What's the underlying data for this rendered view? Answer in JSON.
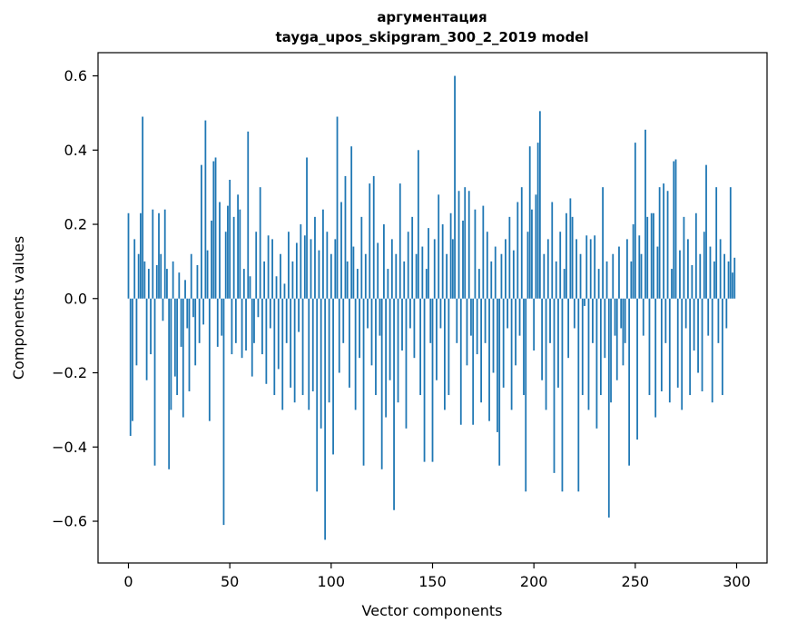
{
  "chart": {
    "title_line1": "аргументация",
    "title_line2": "tayga_upos_skipgram_300_2_2019 model",
    "xlabel": "Vector components",
    "ylabel": "Components values"
  },
  "chart_data": {
    "type": "bar",
    "title": "аргументация\ntayga_upos_skipgram_300_2_2019 model",
    "xlabel": "Vector components",
    "ylabel": "Components values",
    "bar_color": "#1f77b4",
    "grid": false,
    "legend": false,
    "xlim": [
      -15,
      315
    ],
    "ylim": [
      -0.7125,
      0.6625
    ],
    "x_ticks": [
      0,
      50,
      100,
      150,
      200,
      250,
      300
    ],
    "x_tick_labels": [
      "0",
      "50",
      "100",
      "150",
      "200",
      "250",
      "300"
    ],
    "y_ticks": [
      -0.6,
      -0.4,
      -0.2,
      0.0,
      0.2,
      0.4,
      0.6
    ],
    "y_tick_labels": [
      "−0.6",
      "−0.4",
      "−0.2",
      "0.0",
      "0.2",
      "0.4",
      "0.6"
    ],
    "values": [
      0.23,
      -0.37,
      -0.33,
      0.16,
      -0.18,
      0.12,
      0.23,
      0.49,
      0.1,
      -0.22,
      0.08,
      -0.15,
      0.24,
      -0.45,
      0.09,
      0.23,
      0.12,
      -0.06,
      0.24,
      0.08,
      -0.46,
      -0.3,
      0.1,
      -0.21,
      -0.26,
      0.07,
      -0.13,
      -0.32,
      0.05,
      -0.08,
      -0.25,
      0.12,
      -0.05,
      -0.18,
      0.09,
      -0.12,
      0.36,
      -0.07,
      0.48,
      0.13,
      -0.33,
      0.21,
      0.37,
      0.38,
      -0.13,
      0.26,
      -0.1,
      -0.61,
      0.18,
      0.25,
      0.32,
      -0.15,
      0.22,
      -0.12,
      0.28,
      0.24,
      -0.16,
      0.08,
      -0.14,
      0.45,
      0.06,
      -0.21,
      -0.12,
      0.18,
      -0.05,
      0.3,
      -0.15,
      0.1,
      -0.23,
      0.17,
      -0.08,
      0.16,
      -0.26,
      0.06,
      -0.19,
      0.12,
      -0.3,
      0.04,
      -0.12,
      0.18,
      -0.24,
      0.1,
      -0.28,
      0.15,
      -0.09,
      0.2,
      -0.26,
      0.17,
      0.38,
      -0.3,
      0.16,
      -0.25,
      0.22,
      -0.52,
      0.13,
      -0.35,
      0.24,
      -0.65,
      0.18,
      -0.28,
      0.12,
      -0.42,
      0.16,
      0.49,
      -0.2,
      0.26,
      -0.12,
      0.33,
      0.1,
      -0.24,
      0.41,
      0.14,
      -0.3,
      0.08,
      -0.16,
      0.22,
      -0.45,
      0.12,
      -0.08,
      0.31,
      -0.18,
      0.33,
      -0.26,
      0.15,
      -0.1,
      -0.46,
      0.2,
      -0.32,
      0.08,
      -0.22,
      0.16,
      -0.57,
      0.12,
      -0.28,
      0.31,
      -0.14,
      0.1,
      -0.35,
      0.18,
      -0.08,
      0.22,
      -0.16,
      0.12,
      0.4,
      -0.26,
      0.14,
      -0.44,
      0.08,
      0.19,
      -0.12,
      -0.44,
      0.16,
      -0.22,
      0.28,
      -0.08,
      0.2,
      -0.3,
      0.12,
      -0.26,
      0.23,
      0.16,
      0.6,
      -0.12,
      0.29,
      -0.34,
      0.21,
      0.3,
      -0.18,
      0.29,
      -0.1,
      -0.34,
      0.24,
      -0.15,
      0.08,
      -0.28,
      0.25,
      -0.12,
      0.18,
      -0.33,
      0.1,
      -0.2,
      0.14,
      -0.36,
      -0.45,
      0.12,
      -0.24,
      0.16,
      -0.08,
      0.22,
      -0.3,
      0.13,
      -0.18,
      0.26,
      -0.1,
      0.3,
      -0.26,
      -0.52,
      0.18,
      0.41,
      0.24,
      -0.14,
      0.28,
      0.42,
      0.505,
      -0.22,
      0.12,
      -0.3,
      0.16,
      -0.12,
      0.26,
      -0.47,
      0.1,
      -0.24,
      0.18,
      -0.52,
      0.08,
      0.23,
      -0.16,
      0.27,
      0.22,
      -0.08,
      0.16,
      -0.52,
      0.12,
      -0.26,
      -0.02,
      0.17,
      -0.3,
      0.16,
      -0.12,
      0.17,
      -0.35,
      0.08,
      -0.26,
      0.3,
      -0.16,
      0.1,
      -0.59,
      -0.28,
      0.12,
      -0.1,
      -0.22,
      0.14,
      -0.08,
      -0.18,
      -0.12,
      0.16,
      -0.45,
      0.1,
      0.2,
      0.42,
      -0.38,
      0.17,
      0.12,
      -0.1,
      0.455,
      0.22,
      -0.26,
      0.23,
      0.23,
      -0.32,
      0.14,
      0.3,
      -0.25,
      0.31,
      -0.12,
      0.29,
      -0.28,
      0.08,
      0.37,
      0.375,
      -0.24,
      0.13,
      -0.3,
      0.22,
      -0.08,
      0.16,
      -0.26,
      0.09,
      -0.14,
      0.23,
      -0.2,
      0.12,
      -0.25,
      0.18,
      0.36,
      -0.1,
      0.14,
      -0.28,
      0.1,
      0.3,
      -0.12,
      0.16,
      -0.26,
      0.12,
      -0.08,
      0.1,
      0.3,
      0.07,
      0.11
    ]
  }
}
